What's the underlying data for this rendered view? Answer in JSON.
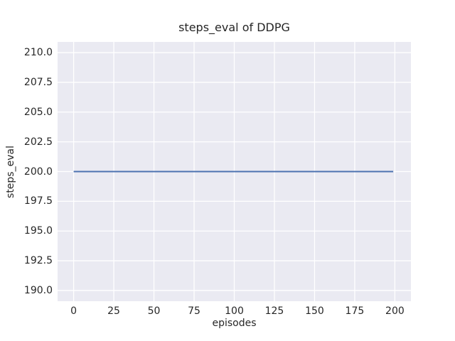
{
  "chart_data": {
    "type": "line",
    "title": "steps_eval of DDPG",
    "xlabel": "episodes",
    "ylabel": "steps_eval",
    "xlim": [
      -10,
      210
    ],
    "ylim": [
      189.1,
      210.9
    ],
    "grid": true,
    "legend": "none",
    "xticks": {
      "values": [
        0,
        25,
        50,
        75,
        100,
        125,
        150,
        175,
        200
      ],
      "labels": [
        "0",
        "25",
        "50",
        "75",
        "100",
        "125",
        "150",
        "175",
        "200"
      ]
    },
    "yticks": {
      "values": [
        190.0,
        192.5,
        195.0,
        197.5,
        200.0,
        202.5,
        205.0,
        207.5,
        210.0
      ],
      "labels": [
        "190.0",
        "192.5",
        "195.0",
        "197.5",
        "200.0",
        "202.5",
        "205.0",
        "207.5",
        "210.0"
      ]
    },
    "series": [
      {
        "name": "steps_eval",
        "x": [
          0,
          199
        ],
        "y": [
          200,
          200
        ],
        "color": "#4C72B0",
        "line_width": 2
      }
    ],
    "colors": {
      "figure_background": "#FFFFFF",
      "plot_background": "#EAEAF2",
      "gridline": "#FFFFFF",
      "text": "#262626",
      "line": "#4C72B0"
    }
  }
}
